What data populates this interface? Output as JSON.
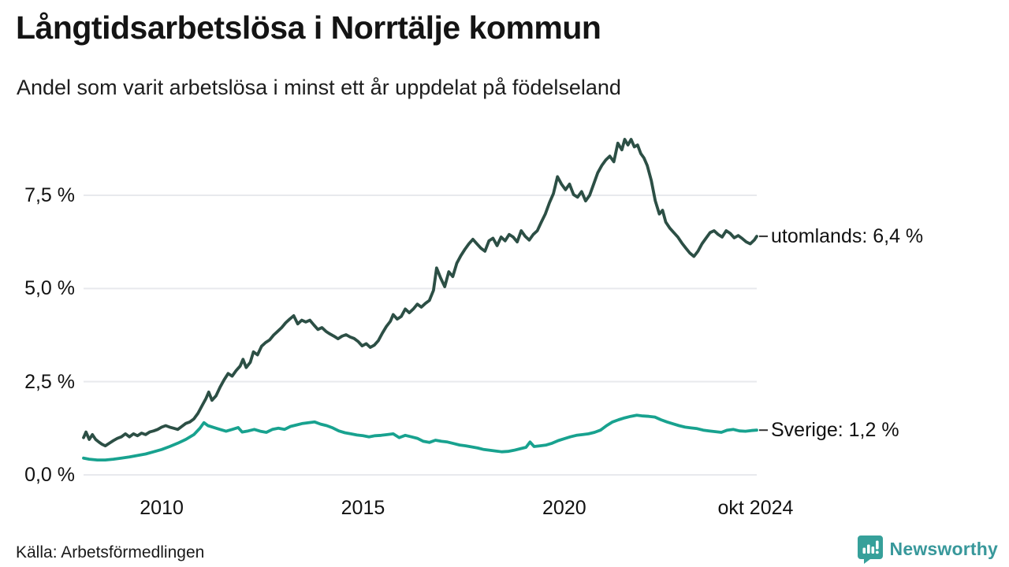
{
  "header": {
    "title": "Långtidsarbetslösa i Norrtälje kommun",
    "subtitle": "Andel som varit arbetslösa i minst ett år uppdelat på födelseland"
  },
  "footer": {
    "source": "Källa: Arbetsförmedlingen",
    "brand": "Newsworthy",
    "brand_icon": "newsworthy-speech-bubble-barchart-icon",
    "brand_color": "#38989B"
  },
  "colors": {
    "utomlands_line": "#2C4F45",
    "sverige_line": "#18A28F",
    "gridline": "#E8E9ED",
    "end_tick": "#333333"
  },
  "chart_data": {
    "type": "line",
    "title": "Långtidsarbetslösa i Norrtälje kommun",
    "subtitle": "Andel som varit arbetslösa i minst ett år uppdelat på födelseland",
    "grid": "horizontal",
    "legend_position": "right-end-of-line",
    "x_range": [
      2008.06,
      2024.78
    ],
    "ylim": [
      0,
      9.6
    ],
    "y_axis": {
      "unit": "%",
      "ticks": [
        {
          "value": 0.0,
          "label": "0,0 %"
        },
        {
          "value": 2.5,
          "label": "2,5 %"
        },
        {
          "value": 5.0,
          "label": "5,0 %"
        },
        {
          "value": 7.5,
          "label": "7,5 %"
        }
      ]
    },
    "x_axis": {
      "ticks": [
        {
          "value": 2010,
          "label": "2010"
        },
        {
          "value": 2015,
          "label": "2015"
        },
        {
          "value": 2020,
          "label": "2020"
        },
        {
          "value": 2024.75,
          "label": "okt 2024"
        }
      ]
    },
    "series": [
      {
        "name": "utomlands",
        "label": "utomlands: 6,4 %",
        "last_value_label": "6,4 %",
        "color": "#2C4F45",
        "x": [
          2008.06,
          2008.12,
          2008.2,
          2008.28,
          2008.36,
          2008.44,
          2008.52,
          2008.6,
          2008.7,
          2008.8,
          2008.9,
          2009.0,
          2009.1,
          2009.2,
          2009.3,
          2009.4,
          2009.5,
          2009.6,
          2009.7,
          2009.8,
          2009.9,
          2010.0,
          2010.1,
          2010.2,
          2010.3,
          2010.4,
          2010.5,
          2010.6,
          2010.7,
          2010.8,
          2010.9,
          2011.0,
          2011.1,
          2011.17,
          2011.25,
          2011.35,
          2011.45,
          2011.55,
          2011.65,
          2011.75,
          2011.85,
          2011.95,
          2012.02,
          2012.1,
          2012.2,
          2012.28,
          2012.38,
          2012.48,
          2012.58,
          2012.68,
          2012.78,
          2012.88,
          2012.98,
          2013.08,
          2013.18,
          2013.28,
          2013.38,
          2013.48,
          2013.58,
          2013.68,
          2013.78,
          2013.88,
          2013.98,
          2014.08,
          2014.18,
          2014.28,
          2014.38,
          2014.48,
          2014.58,
          2014.68,
          2014.78,
          2014.88,
          2014.98,
          2015.08,
          2015.18,
          2015.28,
          2015.38,
          2015.48,
          2015.58,
          2015.68,
          2015.75,
          2015.85,
          2015.95,
          2016.05,
          2016.15,
          2016.25,
          2016.35,
          2016.45,
          2016.55,
          2016.65,
          2016.75,
          2016.83,
          2016.93,
          2017.03,
          2017.13,
          2017.23,
          2017.33,
          2017.43,
          2017.53,
          2017.63,
          2017.73,
          2017.83,
          2017.93,
          2018.03,
          2018.13,
          2018.23,
          2018.33,
          2018.43,
          2018.53,
          2018.63,
          2018.73,
          2018.83,
          2018.93,
          2019.03,
          2019.13,
          2019.23,
          2019.33,
          2019.43,
          2019.53,
          2019.63,
          2019.73,
          2019.83,
          2019.93,
          2020.03,
          2020.13,
          2020.23,
          2020.33,
          2020.43,
          2020.53,
          2020.63,
          2020.73,
          2020.83,
          2020.93,
          2021.03,
          2021.13,
          2021.23,
          2021.33,
          2021.43,
          2021.5,
          2021.58,
          2021.66,
          2021.74,
          2021.82,
          2021.9,
          2021.98,
          2022.06,
          2022.16,
          2022.26,
          2022.36,
          2022.44,
          2022.52,
          2022.62,
          2022.72,
          2022.82,
          2022.92,
          2023.02,
          2023.12,
          2023.22,
          2023.32,
          2023.42,
          2023.52,
          2023.62,
          2023.72,
          2023.82,
          2023.92,
          2024.02,
          2024.12,
          2024.22,
          2024.32,
          2024.42,
          2024.52,
          2024.62,
          2024.72,
          2024.78
        ],
        "y": [
          1.0,
          1.15,
          0.95,
          1.08,
          0.95,
          0.88,
          0.82,
          0.78,
          0.85,
          0.92,
          0.98,
          1.02,
          1.1,
          1.02,
          1.1,
          1.05,
          1.12,
          1.08,
          1.15,
          1.18,
          1.22,
          1.28,
          1.32,
          1.28,
          1.25,
          1.22,
          1.3,
          1.38,
          1.42,
          1.5,
          1.65,
          1.85,
          2.05,
          2.22,
          2.0,
          2.12,
          2.35,
          2.55,
          2.72,
          2.65,
          2.8,
          2.92,
          3.1,
          2.88,
          3.02,
          3.3,
          3.22,
          3.45,
          3.55,
          3.62,
          3.75,
          3.85,
          3.95,
          4.08,
          4.18,
          4.27,
          4.05,
          4.15,
          4.1,
          4.15,
          4.02,
          3.9,
          3.95,
          3.85,
          3.78,
          3.72,
          3.65,
          3.72,
          3.76,
          3.7,
          3.66,
          3.58,
          3.46,
          3.52,
          3.42,
          3.48,
          3.6,
          3.8,
          3.98,
          4.12,
          4.3,
          4.18,
          4.25,
          4.45,
          4.35,
          4.45,
          4.58,
          4.5,
          4.6,
          4.68,
          4.95,
          5.55,
          5.28,
          5.05,
          5.45,
          5.32,
          5.68,
          5.88,
          6.05,
          6.2,
          6.32,
          6.2,
          6.08,
          6.0,
          6.28,
          6.35,
          6.15,
          6.38,
          6.28,
          6.45,
          6.38,
          6.25,
          6.55,
          6.4,
          6.3,
          6.45,
          6.55,
          6.78,
          7.0,
          7.3,
          7.55,
          8.0,
          7.8,
          7.65,
          7.8,
          7.52,
          7.45,
          7.6,
          7.35,
          7.5,
          7.8,
          8.1,
          8.3,
          8.45,
          8.55,
          8.4,
          8.9,
          8.72,
          9.0,
          8.85,
          9.0,
          8.8,
          8.85,
          8.62,
          8.5,
          8.3,
          7.9,
          7.35,
          7.0,
          7.1,
          6.78,
          6.62,
          6.5,
          6.38,
          6.22,
          6.08,
          5.95,
          5.86,
          6.0,
          6.2,
          6.35,
          6.5,
          6.55,
          6.45,
          6.38,
          6.55,
          6.48,
          6.36,
          6.42,
          6.34,
          6.25,
          6.2,
          6.3,
          6.4
        ]
      },
      {
        "name": "Sverige",
        "label": "Sverige: 1,2 %",
        "last_value_label": "1,2 %",
        "color": "#18A28F",
        "x": [
          2008.06,
          2008.2,
          2008.4,
          2008.6,
          2008.8,
          2009.0,
          2009.2,
          2009.4,
          2009.6,
          2009.8,
          2010.0,
          2010.2,
          2010.4,
          2010.6,
          2010.8,
          2010.95,
          2011.05,
          2011.15,
          2011.3,
          2011.45,
          2011.6,
          2011.75,
          2011.9,
          2012.0,
          2012.15,
          2012.3,
          2012.45,
          2012.6,
          2012.75,
          2012.9,
          2013.05,
          2013.2,
          2013.35,
          2013.5,
          2013.65,
          2013.8,
          2013.95,
          2014.1,
          2014.25,
          2014.4,
          2014.55,
          2014.7,
          2014.85,
          2015.0,
          2015.15,
          2015.3,
          2015.45,
          2015.6,
          2015.75,
          2015.9,
          2016.05,
          2016.2,
          2016.35,
          2016.5,
          2016.65,
          2016.8,
          2016.95,
          2017.1,
          2017.25,
          2017.4,
          2017.55,
          2017.7,
          2017.85,
          2018.0,
          2018.15,
          2018.3,
          2018.45,
          2018.6,
          2018.75,
          2018.9,
          2019.05,
          2019.15,
          2019.25,
          2019.4,
          2019.55,
          2019.7,
          2019.85,
          2020.0,
          2020.15,
          2020.3,
          2020.45,
          2020.6,
          2020.75,
          2020.9,
          2021.05,
          2021.2,
          2021.35,
          2021.5,
          2021.65,
          2021.8,
          2021.95,
          2022.1,
          2022.25,
          2022.4,
          2022.55,
          2022.7,
          2022.85,
          2023.0,
          2023.15,
          2023.3,
          2023.45,
          2023.6,
          2023.75,
          2023.9,
          2024.05,
          2024.2,
          2024.35,
          2024.5,
          2024.65,
          2024.78
        ],
        "y": [
          0.45,
          0.42,
          0.4,
          0.4,
          0.42,
          0.45,
          0.48,
          0.52,
          0.56,
          0.62,
          0.68,
          0.76,
          0.85,
          0.95,
          1.08,
          1.25,
          1.4,
          1.32,
          1.27,
          1.22,
          1.17,
          1.22,
          1.27,
          1.15,
          1.18,
          1.22,
          1.17,
          1.14,
          1.22,
          1.25,
          1.22,
          1.3,
          1.34,
          1.38,
          1.4,
          1.42,
          1.36,
          1.32,
          1.26,
          1.18,
          1.13,
          1.1,
          1.07,
          1.05,
          1.02,
          1.05,
          1.06,
          1.08,
          1.1,
          1.0,
          1.06,
          1.02,
          0.98,
          0.9,
          0.87,
          0.93,
          0.9,
          0.88,
          0.84,
          0.8,
          0.78,
          0.75,
          0.72,
          0.68,
          0.66,
          0.64,
          0.62,
          0.63,
          0.66,
          0.7,
          0.74,
          0.88,
          0.76,
          0.78,
          0.8,
          0.85,
          0.92,
          0.97,
          1.02,
          1.06,
          1.08,
          1.1,
          1.14,
          1.2,
          1.32,
          1.42,
          1.48,
          1.53,
          1.57,
          1.6,
          1.58,
          1.57,
          1.55,
          1.48,
          1.42,
          1.37,
          1.32,
          1.28,
          1.26,
          1.24,
          1.2,
          1.18,
          1.16,
          1.14,
          1.2,
          1.22,
          1.18,
          1.17,
          1.19,
          1.2
        ]
      }
    ]
  }
}
